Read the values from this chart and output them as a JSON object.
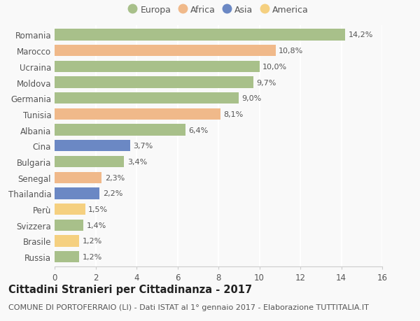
{
  "countries": [
    "Romania",
    "Marocco",
    "Ucraina",
    "Moldova",
    "Germania",
    "Tunisia",
    "Albania",
    "Cina",
    "Bulgaria",
    "Senegal",
    "Thailandia",
    "Perù",
    "Svizzera",
    "Brasile",
    "Russia"
  ],
  "values": [
    14.2,
    10.8,
    10.0,
    9.7,
    9.0,
    8.1,
    6.4,
    3.7,
    3.4,
    2.3,
    2.2,
    1.5,
    1.4,
    1.2,
    1.2
  ],
  "labels": [
    "14,2%",
    "10,8%",
    "10,0%",
    "9,7%",
    "9,0%",
    "8,1%",
    "6,4%",
    "3,7%",
    "3,4%",
    "2,3%",
    "2,2%",
    "1,5%",
    "1,4%",
    "1,2%",
    "1,2%"
  ],
  "continents": [
    "Europa",
    "Africa",
    "Europa",
    "Europa",
    "Europa",
    "Africa",
    "Europa",
    "Asia",
    "Europa",
    "Africa",
    "Asia",
    "America",
    "Europa",
    "America",
    "Europa"
  ],
  "continent_colors": {
    "Europa": "#a8c08a",
    "Africa": "#f0b98a",
    "Asia": "#6b88c4",
    "America": "#f5d080"
  },
  "legend_order": [
    "Europa",
    "Africa",
    "Asia",
    "America"
  ],
  "xlim": [
    0,
    16
  ],
  "xticks": [
    0,
    2,
    4,
    6,
    8,
    10,
    12,
    14,
    16
  ],
  "title": "Cittadini Stranieri per Cittadinanza - 2017",
  "subtitle": "COMUNE DI PORTOFERRAIO (LI) - Dati ISTAT al 1° gennaio 2017 - Elaborazione TUTTITALIA.IT",
  "background_color": "#f9f9f9",
  "bar_height": 0.72,
  "title_fontsize": 10.5,
  "subtitle_fontsize": 8,
  "label_fontsize": 8,
  "tick_fontsize": 8.5,
  "legend_fontsize": 9
}
